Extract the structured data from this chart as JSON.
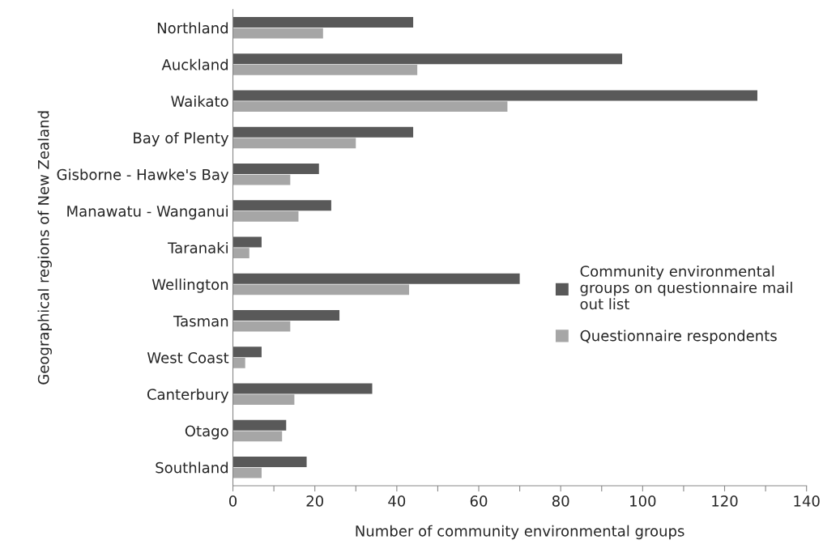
{
  "chart_data": {
    "type": "bar",
    "orientation": "horizontal",
    "xlabel": "Number of community environmental groups",
    "ylabel": "Geographical regions of New Zealand",
    "categories": [
      "Northland",
      "Auckland",
      "Waikato",
      "Bay of Plenty",
      "Gisborne - Hawke's Bay",
      "Manawatu - Wanganui",
      "Taranaki",
      "Wellington",
      "Tasman",
      "West Coast",
      "Canterbury",
      "Otago",
      "Southland"
    ],
    "series": [
      {
        "name": "Community environmental groups on questionnaire mail out list",
        "color": "#595959",
        "values": [
          44,
          95,
          128,
          44,
          21,
          24,
          7,
          70,
          26,
          7,
          34,
          13,
          18
        ]
      },
      {
        "name": "Questionnaire respondents",
        "color": "#a6a6a6",
        "values": [
          22,
          45,
          67,
          30,
          14,
          16,
          4,
          43,
          14,
          3,
          15,
          12,
          7
        ]
      }
    ],
    "xlim": [
      0,
      140
    ],
    "xticks": [
      0,
      {
        "value": 10,
        "label": null
      },
      20,
      {
        "value": 30,
        "label": null
      },
      40,
      {
        "value": 50,
        "label": null
      },
      60,
      {
        "value": 70,
        "label": null
      },
      80,
      {
        "value": 90,
        "label": null
      },
      100,
      {
        "value": 110,
        "label": null
      },
      120,
      {
        "value": 130,
        "label": null
      },
      140
    ],
    "grid": false,
    "legend": "right"
  }
}
